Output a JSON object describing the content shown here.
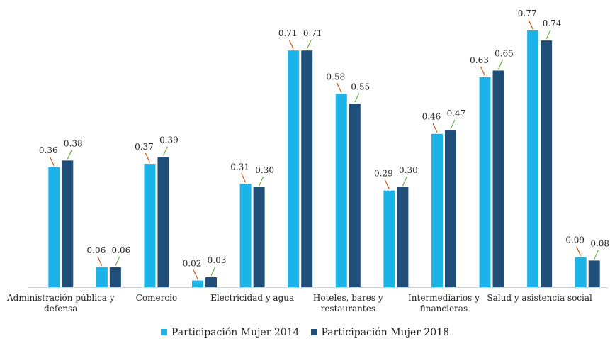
{
  "chart_data": {
    "type": "bar",
    "categories": [
      "Administración pública y defensa",
      null,
      "Comercio",
      null,
      "Electricidad y agua",
      null,
      "Hoteles, bares y restaurantes",
      null,
      "Intermediarios y financieras",
      null,
      "Salud y asistencia social",
      null
    ],
    "series": [
      {
        "name": "Participación Mujer 2014",
        "color": "#1cb3e8",
        "values": [
          0.36,
          0.06,
          0.37,
          0.02,
          0.31,
          0.71,
          0.58,
          0.29,
          0.46,
          0.63,
          0.77,
          0.09
        ],
        "value_labels": [
          "0.36",
          "0.06",
          "0.37",
          "0.02",
          "0.31",
          "0.71",
          "0.58",
          "0.29",
          "0.46",
          "0.63",
          "0.77",
          "0.09"
        ]
      },
      {
        "name": "Participación Mujer 2018",
        "color": "#1f4e79",
        "values": [
          0.38,
          0.06,
          0.39,
          0.03,
          0.3,
          0.71,
          0.55,
          0.3,
          0.47,
          0.65,
          0.74,
          0.08
        ],
        "value_labels": [
          "0.38",
          "0.06",
          "0.39",
          "0.03",
          "0.30",
          "0.71",
          "0.55",
          "0.30",
          "0.47",
          "0.65",
          "0.74",
          "0.08"
        ]
      }
    ],
    "legend": "bottom"
  }
}
